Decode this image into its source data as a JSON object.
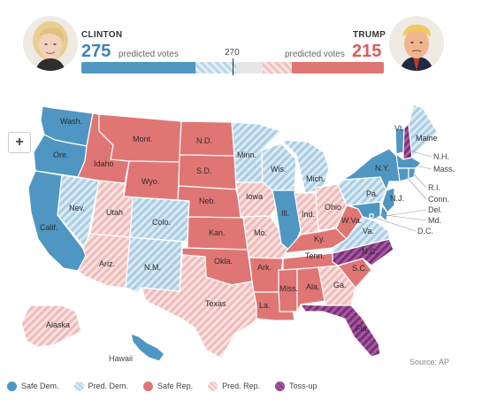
{
  "candidates": {
    "left": {
      "name": "CLINTON",
      "votes": "275",
      "votes_label": "predicted votes"
    },
    "right": {
      "name": "TRUMP",
      "votes": "215",
      "votes_label": "predicted votes"
    }
  },
  "threshold_label": "270",
  "bar": {
    "segments": [
      {
        "category": "safe-dem",
        "votes": 203
      },
      {
        "category": "pred-dem",
        "votes": 72
      },
      {
        "category": "toss-up",
        "votes": 48
      },
      {
        "category": "pred-rep",
        "votes": 51
      },
      {
        "category": "safe-rep",
        "votes": 164
      }
    ]
  },
  "zoom_label": "+",
  "source": "Source: AP",
  "colors": {
    "safe_dem": "#4f97c2",
    "pred_dem": "#b9d7e8",
    "safe_rep": "#e07674",
    "pred_rep": "#f0c3c1",
    "toss_up": "#8a3d87",
    "neutral": "#e6e6e6"
  },
  "legend": [
    {
      "key": "safe-dem",
      "label": "Safe Dem."
    },
    {
      "key": "pred-dem",
      "label": "Pred. Dem."
    },
    {
      "key": "safe-rep",
      "label": "Safe Rep."
    },
    {
      "key": "pred-rep",
      "label": "Pred. Rep."
    },
    {
      "key": "toss-up",
      "label": "Toss-up"
    }
  ],
  "states": {
    "WA": {
      "label": "Wash.",
      "category": "safe-dem"
    },
    "OR": {
      "label": "Ore.",
      "category": "safe-dem"
    },
    "CA": {
      "label": "Calif.",
      "category": "safe-dem"
    },
    "NV": {
      "label": "Nev.",
      "category": "pred-dem"
    },
    "ID": {
      "label": "Idaho",
      "category": "safe-rep"
    },
    "MT": {
      "label": "Mont.",
      "category": "safe-rep"
    },
    "WY": {
      "label": "Wyo.",
      "category": "safe-rep"
    },
    "UT": {
      "label": "Utah",
      "category": "pred-rep"
    },
    "AZ": {
      "label": "Ariz.",
      "category": "pred-rep"
    },
    "CO": {
      "label": "Colo.",
      "category": "pred-dem"
    },
    "NM": {
      "label": "N.M.",
      "category": "pred-dem"
    },
    "ND": {
      "label": "N.D.",
      "category": "safe-rep"
    },
    "SD": {
      "label": "S.D.",
      "category": "safe-rep"
    },
    "NE": {
      "label": "Neb.",
      "category": "safe-rep"
    },
    "KS": {
      "label": "Kan.",
      "category": "safe-rep"
    },
    "OK": {
      "label": "Okla.",
      "category": "safe-rep"
    },
    "TX": {
      "label": "Texas",
      "category": "pred-rep"
    },
    "MN": {
      "label": "Minn.",
      "category": "pred-dem"
    },
    "IA": {
      "label": "Iowa",
      "category": "pred-rep"
    },
    "MO": {
      "label": "Mo.",
      "category": "pred-rep"
    },
    "AR": {
      "label": "Ark.",
      "category": "safe-rep"
    },
    "LA": {
      "label": "La.",
      "category": "safe-rep"
    },
    "WI": {
      "label": "Wis.",
      "category": "pred-dem"
    },
    "IL": {
      "label": "Ill.",
      "category": "safe-dem"
    },
    "MI": {
      "label": "Mich.",
      "category": "pred-dem"
    },
    "IN": {
      "label": "Ind.",
      "category": "pred-rep"
    },
    "OH": {
      "label": "Ohio",
      "category": "pred-rep"
    },
    "KY": {
      "label": "Ky.",
      "category": "safe-rep"
    },
    "TN": {
      "label": "Tenn.",
      "category": "safe-rep"
    },
    "MS": {
      "label": "Miss.",
      "category": "safe-rep"
    },
    "AL": {
      "label": "Ala.",
      "category": "safe-rep"
    },
    "GA": {
      "label": "Ga.",
      "category": "pred-rep"
    },
    "FL": {
      "label": "Fla.",
      "category": "toss-up"
    },
    "SC": {
      "label": "S.C.",
      "category": "safe-rep"
    },
    "NC": {
      "label": "N.C.",
      "category": "toss-up"
    },
    "VA": {
      "label": "Va.",
      "category": "pred-dem"
    },
    "WV": {
      "label": "W.Va.",
      "category": "safe-rep"
    },
    "PA": {
      "label": "Pa.",
      "category": "pred-dem"
    },
    "NY": {
      "label": "N.Y.",
      "category": "safe-dem"
    },
    "VT": {
      "label": "Vt.",
      "category": "safe-dem"
    },
    "NH": {
      "label": "N.H.",
      "category": "toss-up"
    },
    "ME": {
      "label": "Maine",
      "category": "pred-dem"
    },
    "MA": {
      "label": "Mass.",
      "category": "safe-dem"
    },
    "RI": {
      "label": "R.I.",
      "category": "safe-dem"
    },
    "CT": {
      "label": "Conn.",
      "category": "safe-dem"
    },
    "NJ": {
      "label": "N.J.",
      "category": "safe-dem"
    },
    "DE": {
      "label": "Del.",
      "category": "safe-dem"
    },
    "MD": {
      "label": "Md.",
      "category": "safe-dem"
    },
    "DC": {
      "label": "D.C.",
      "category": "safe-dem"
    },
    "AK": {
      "label": "Alaska",
      "category": "pred-rep"
    },
    "HI": {
      "label": "Hawaii",
      "category": "safe-dem"
    }
  }
}
